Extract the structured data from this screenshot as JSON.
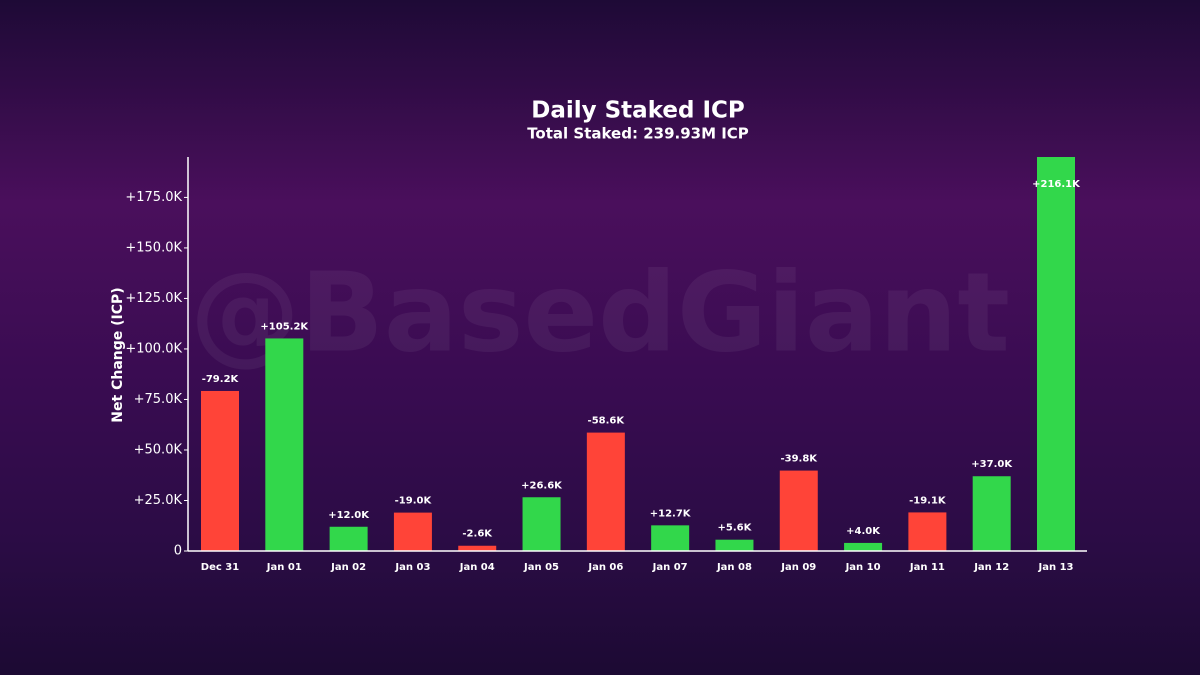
{
  "chart_data": {
    "type": "bar",
    "title": "Daily Staked ICP",
    "subtitle": "Total Staked: 239.93M ICP",
    "y_label": "Net Change (ICP)",
    "watermark": "@BasedGiant",
    "categories": [
      "Dec 31",
      "Jan 01",
      "Jan 02",
      "Jan 03",
      "Jan 04",
      "Jan 05",
      "Jan 06",
      "Jan 07",
      "Jan 08",
      "Jan 09",
      "Jan 10",
      "Jan 11",
      "Jan 12",
      "Jan 13"
    ],
    "values": [
      -79200,
      105200,
      12000,
      -19000,
      -2600,
      26600,
      -58600,
      12700,
      5600,
      -39800,
      4000,
      -19100,
      37000,
      216100
    ],
    "value_labels": [
      "-79.2K",
      "+105.2K",
      "+12.0K",
      "-19.0K",
      "-2.6K",
      "+26.6K",
      "-58.6K",
      "+12.7K",
      "+5.6K",
      "-39.8K",
      "+4.0K",
      "-19.1K",
      "+37.0K",
      "+216.1K"
    ],
    "positive_color": "#32d74b",
    "negative_color": "#ff4438",
    "ylim": [
      0,
      195000
    ],
    "yticks": [
      0,
      {
        "value": 25000,
        "label": "+25.0K"
      },
      {
        "value": 50000,
        "label": "+50.0K"
      },
      {
        "value": 75000,
        "label": "+75.0K"
      },
      {
        "value": 100000,
        "label": "+100.0K"
      },
      {
        "value": 125000,
        "label": "+125.0K"
      },
      {
        "value": 150000,
        "label": "+150.0K"
      },
      {
        "value": 175000,
        "label": "+175.0K"
      }
    ]
  }
}
